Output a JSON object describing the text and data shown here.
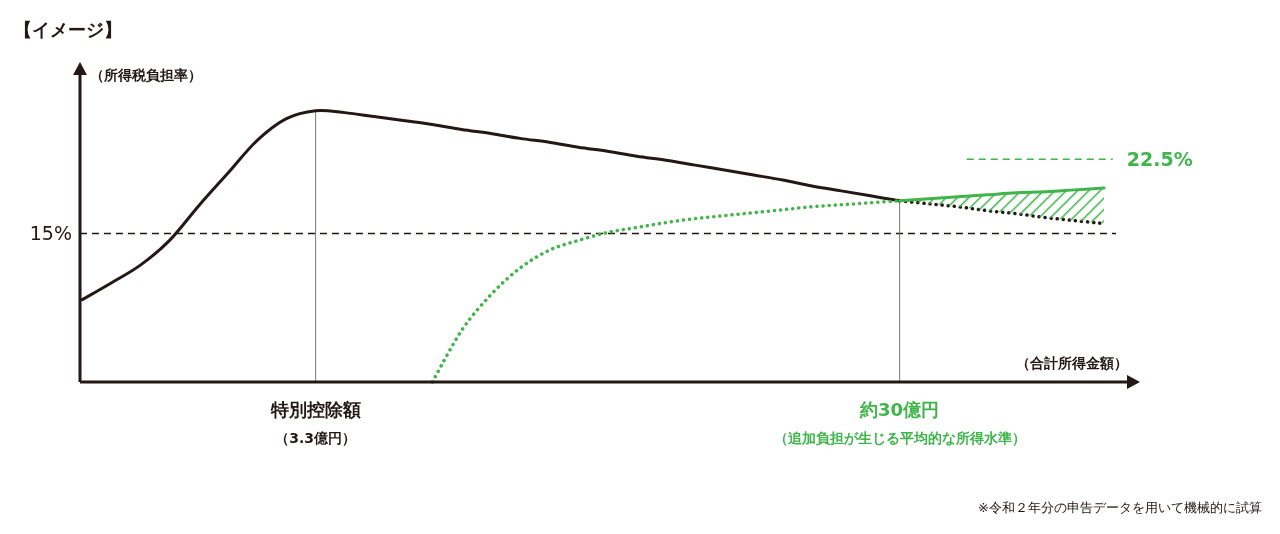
{
  "chart_data": {
    "type": "line",
    "title": "【イメージ】",
    "ylabel": "（所得税負担率）",
    "xlabel": "（合計所得金額）",
    "categories": [
      null,
      null,
      null,
      null,
      null,
      null,
      null,
      null,
      "特別控除額",
      null,
      null,
      null,
      null,
      null,
      null,
      null,
      null,
      null,
      null,
      null,
      null,
      null,
      null,
      null,
      null,
      null,
      null,
      null,
      "約30億円",
      null,
      null,
      null,
      null,
      null,
      null,
      null
    ],
    "ylim": [
      0,
      31
    ],
    "marker": "none",
    "series": [
      {
        "color": "#231815",
        "line_style": "solid",
        "values": [
          8.3,
          10.0,
          11.8,
          14.3,
          17.8,
          21.1,
          24.4,
          26.6,
          27.4,
          27.2,
          26.8,
          26.4,
          26.0,
          25.5,
          25.1,
          24.6,
          24.2,
          23.7,
          23.3,
          22.8,
          22.4,
          21.9,
          21.4,
          20.9,
          20.4,
          19.8,
          19.3,
          18.8,
          18.3,
          null,
          null,
          null,
          null,
          null,
          null,
          null
        ]
      },
      {
        "color": "#231815",
        "line_style": "dotted",
        "values": [
          null,
          null,
          null,
          null,
          null,
          null,
          null,
          null,
          null,
          null,
          null,
          null,
          null,
          null,
          null,
          null,
          null,
          null,
          null,
          null,
          null,
          null,
          null,
          null,
          null,
          null,
          null,
          null,
          18.3,
          18.0,
          17.7,
          17.3,
          17.0,
          16.6,
          16.3,
          16.0
        ]
      },
      {
        "color": "#3fb54a",
        "line_style": "solid",
        "values": [
          null,
          null,
          null,
          null,
          null,
          null,
          null,
          null,
          null,
          null,
          null,
          null,
          null,
          null,
          null,
          null,
          null,
          null,
          null,
          null,
          null,
          null,
          null,
          null,
          null,
          null,
          null,
          null,
          18.3,
          18.5,
          18.7,
          18.9,
          19.1,
          19.2,
          19.4,
          19.6
        ],
        "lower": [
          null,
          null,
          null,
          null,
          null,
          null,
          null,
          null,
          null,
          null,
          null,
          null,
          null,
          null,
          null,
          null,
          null,
          null,
          null,
          null,
          null,
          null,
          null,
          null,
          null,
          null,
          null,
          null,
          18.3,
          18.0,
          17.7,
          17.3,
          17.0,
          16.6,
          16.3,
          16.0
        ],
        "upper": [
          null,
          null,
          null,
          null,
          null,
          null,
          null,
          null,
          null,
          null,
          null,
          null,
          null,
          null,
          null,
          null,
          null,
          null,
          null,
          null,
          null,
          null,
          null,
          null,
          null,
          null,
          null,
          null,
          18.3,
          18.5,
          18.7,
          18.9,
          19.1,
          19.2,
          19.4,
          19.6
        ]
      },
      {
        "color": "#3fb54a",
        "line_style": "dotted",
        "values": [
          null,
          null,
          null,
          null,
          null,
          null,
          null,
          null,
          null,
          null,
          null,
          null,
          0,
          5.2,
          8.8,
          11.5,
          13.3,
          14.3,
          15.1,
          15.6,
          16.1,
          16.5,
          16.8,
          17.1,
          17.4,
          17.7,
          17.9,
          18.1,
          18.3,
          null,
          null,
          null,
          null,
          null,
          null,
          null
        ]
      }
    ],
    "ref_lines": [
      {
        "axis": "y",
        "value": 15,
        "label": "15%",
        "line_style": "dashed"
      },
      {
        "axis": "y",
        "value": 22.5,
        "label": "22.5%",
        "color": "#3fb54a",
        "line_style": "dashed"
      }
    ],
    "annotations": [
      "（3.3億円）",
      "（追加負担が生じる平均的な所得水準）",
      "※令和２年分の申告データを用いて機械的に試算"
    ]
  }
}
